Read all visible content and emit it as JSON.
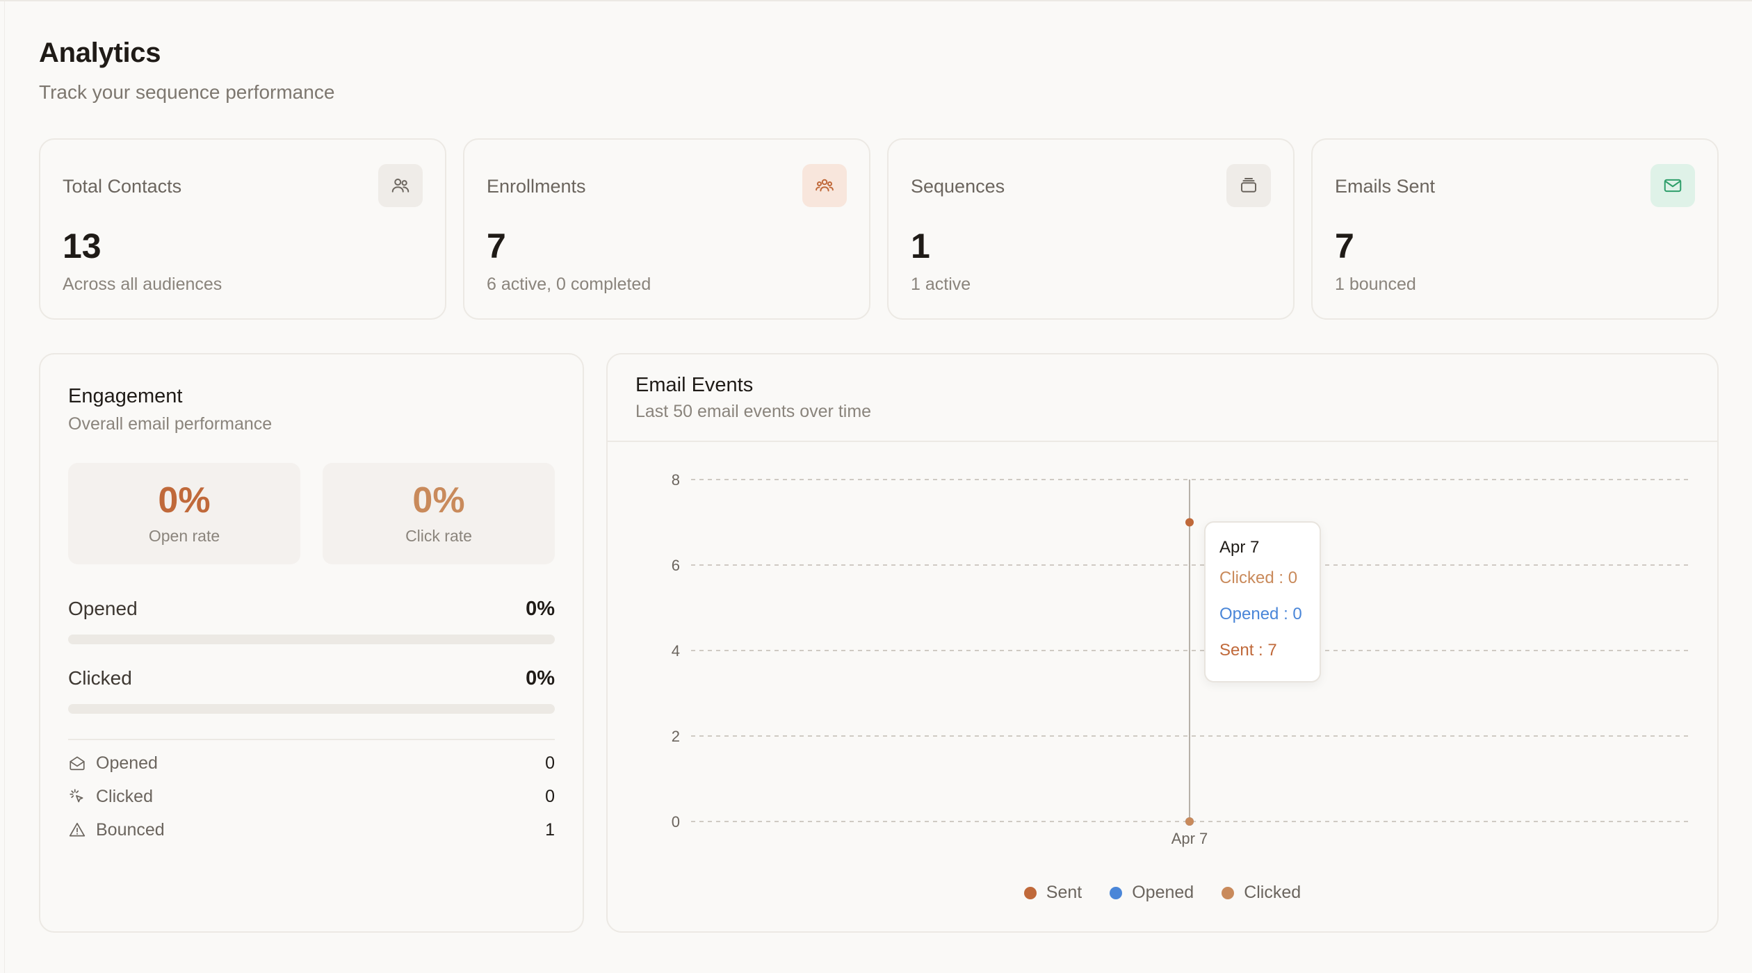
{
  "header": {
    "title": "Analytics",
    "subtitle": "Track your sequence performance"
  },
  "stats": [
    {
      "label": "Total Contacts",
      "value": "13",
      "sub": "Across all audiences",
      "icon": "users-icon"
    },
    {
      "label": "Enrollments",
      "value": "7",
      "sub": "6 active, 0 completed",
      "icon": "group-icon"
    },
    {
      "label": "Sequences",
      "value": "1",
      "sub": "1 active",
      "icon": "layers-icon"
    },
    {
      "label": "Emails Sent",
      "value": "7",
      "sub": "1 bounced",
      "icon": "mail-icon"
    }
  ],
  "engagement": {
    "title": "Engagement",
    "subtitle": "Overall email performance",
    "open_rate": {
      "value": "0%",
      "label": "Open rate"
    },
    "click_rate": {
      "value": "0%",
      "label": "Click rate"
    },
    "progress": [
      {
        "label": "Opened",
        "value": "0%",
        "fraction": 0
      },
      {
        "label": "Clicked",
        "value": "0%",
        "fraction": 0
      }
    ],
    "counts": [
      {
        "label": "Opened",
        "value": "0",
        "icon": "mail-open-icon"
      },
      {
        "label": "Clicked",
        "value": "0",
        "icon": "click-icon"
      },
      {
        "label": "Bounced",
        "value": "1",
        "icon": "warning-icon"
      }
    ]
  },
  "events": {
    "title": "Email Events",
    "subtitle": "Last 50 email events over time",
    "tooltip": {
      "title": "Apr 7",
      "clicked": "Clicked : 0",
      "opened": "Opened : 0",
      "sent": "Sent : 7"
    }
  },
  "colors": {
    "sent": "#c0693a",
    "opened": "#4a86d8",
    "clicked": "#c98a5b",
    "accent_orange": "#c0693a",
    "accent_green": "#2e9e6a"
  },
  "chart_data": {
    "type": "line",
    "x": [
      "Apr 7"
    ],
    "series": [
      {
        "name": "Sent",
        "values": [
          7
        ]
      },
      {
        "name": "Opened",
        "values": [
          0
        ]
      },
      {
        "name": "Clicked",
        "values": [
          0
        ]
      }
    ],
    "ylim": [
      0,
      8
    ],
    "yticks": [
      0,
      2,
      4,
      6,
      8
    ],
    "grid": true,
    "legend": "bottom"
  }
}
